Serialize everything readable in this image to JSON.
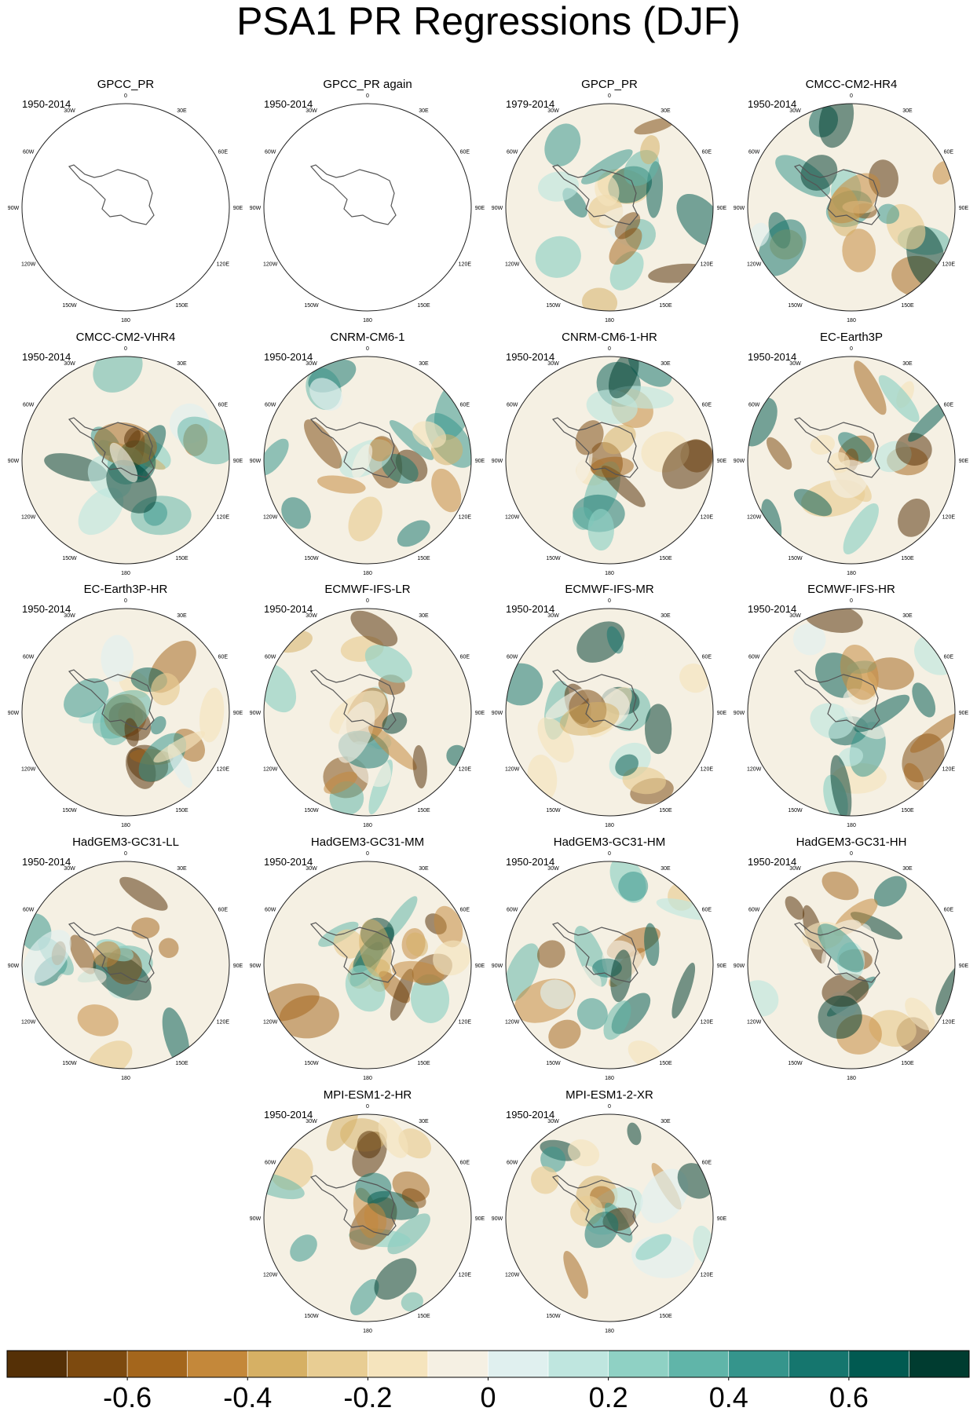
{
  "title": "PSA1 PR Regressions (DJF)",
  "panels": [
    {
      "title": "GPCC_PR",
      "period": "1950-2014"
    },
    {
      "title": "GPCC_PR again",
      "period": "1950-2014"
    },
    {
      "title": "GPCP_PR",
      "period": "1979-2014"
    },
    {
      "title": "CMCC-CM2-HR4",
      "period": "1950-2014"
    },
    {
      "title": "CMCC-CM2-VHR4",
      "period": "1950-2014"
    },
    {
      "title": "CNRM-CM6-1",
      "period": "1950-2014"
    },
    {
      "title": "CNRM-CM6-1-HR",
      "period": "1950-2014"
    },
    {
      "title": "EC-Earth3P",
      "period": "1950-2014"
    },
    {
      "title": "EC-Earth3P-HR",
      "period": "1950-2014"
    },
    {
      "title": "ECMWF-IFS-LR",
      "period": "1950-2014"
    },
    {
      "title": "ECMWF-IFS-MR",
      "period": "1950-2014"
    },
    {
      "title": "ECMWF-IFS-HR",
      "period": "1950-2014"
    },
    {
      "title": "HadGEM3-GC31-LL",
      "period": "1950-2014"
    },
    {
      "title": "HadGEM3-GC31-MM",
      "period": "1950-2014"
    },
    {
      "title": "HadGEM3-GC31-HM",
      "period": "1950-2014"
    },
    {
      "title": "HadGEM3-GC31-HH",
      "period": "1950-2014"
    },
    {
      "title": "MPI-ESM1-2-HR",
      "period": "1950-2014"
    },
    {
      "title": "MPI-ESM1-2-XR",
      "period": "1950-2014"
    }
  ],
  "longitude_labels": [
    "0",
    "30E",
    "60E",
    "90E",
    "120E",
    "150E",
    "180",
    "150W",
    "120W",
    "90W",
    "60W",
    "30W"
  ],
  "colorbar": {
    "colors": [
      "#553006",
      "#7d4a0f",
      "#a4661c",
      "#c4883a",
      "#d6b064",
      "#e8cd93",
      "#f5e4bd",
      "#f5f0e3",
      "#e0f0ef",
      "#bfe6df",
      "#8fd1c4",
      "#60b5a9",
      "#35958c",
      "#15766e",
      "#015a51",
      "#003c30"
    ],
    "xlim": [
      -0.8,
      0.8
    ],
    "xticks": [
      -0.6,
      -0.4,
      -0.2,
      0,
      0.2,
      0.4,
      0.6
    ]
  }
}
